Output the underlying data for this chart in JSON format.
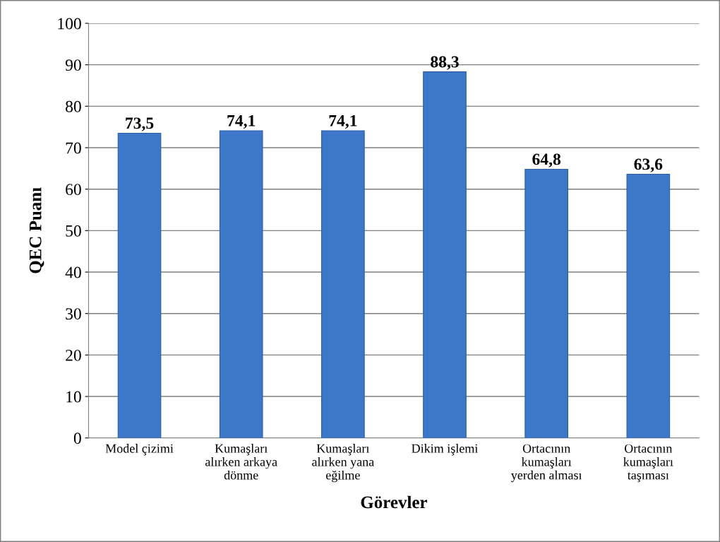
{
  "chart_data": {
    "type": "bar",
    "xlabel": "Görevler",
    "ylabel": "QEC Puanı",
    "categories": [
      "Model çizimi",
      "Kumaşları\nalırken arkaya\ndönme",
      "Kumaşları\nalırken yana\neğilme",
      "Dikim işlemi",
      "Ortacının\nkumaşları\nyerden alması",
      "Ortacının\nkumaşları\ntaşıması"
    ],
    "values": [
      73.5,
      74.1,
      74.1,
      88.3,
      64.8,
      63.6
    ],
    "value_labels": [
      "73,5",
      "74,1",
      "74,1",
      "88,3",
      "64,8",
      "63,6"
    ],
    "color": "#3d78c8",
    "ylim": [
      0,
      100
    ],
    "yticks": [
      0,
      10,
      20,
      30,
      40,
      50,
      60,
      70,
      80,
      90,
      100
    ],
    "grid": "y",
    "legend": false
  }
}
